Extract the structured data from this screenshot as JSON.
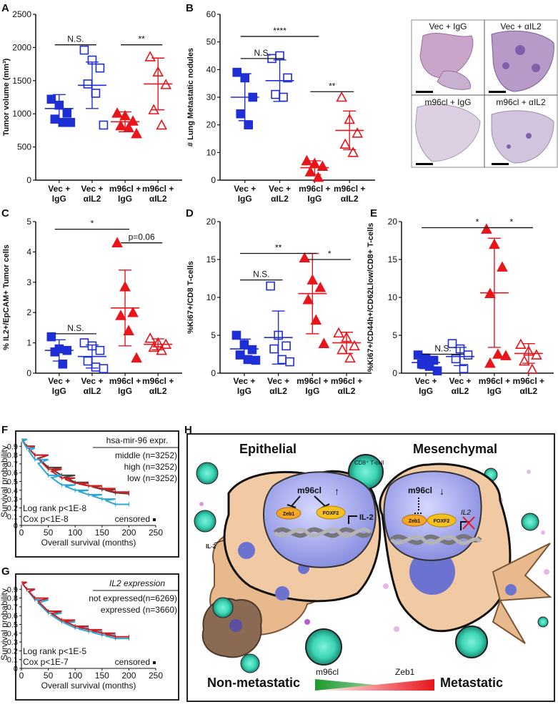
{
  "panel_labels": {
    "A": "A",
    "B": "B",
    "C": "C",
    "D": "D",
    "E": "E",
    "F": "F",
    "G": "G",
    "H": "H"
  },
  "categories": [
    [
      "Vec +",
      "IgG"
    ],
    [
      "Vec +",
      "αIL2"
    ],
    [
      "m96cl +",
      "IgG"
    ],
    [
      "m96cl +",
      "αIL2"
    ]
  ],
  "colors": {
    "blue": "#1f2fd6",
    "red": "#e8151b",
    "curve_gray": "#444444",
    "curve_red": "#cc1f1f",
    "curve_blue": "#2aa7d8",
    "green": "#1d9a2e",
    "tissue": "#c9a5c9"
  },
  "chart_data": [
    {
      "id": "A",
      "type": "scatter",
      "ylabel": "Tumor volume (mm³)",
      "ylim": [
        0,
        2500
      ],
      "yticks": [
        "0",
        "500",
        "1000",
        "1500",
        "2000",
        "2500"
      ],
      "ytick_values": [
        0,
        500,
        1000,
        1500,
        2000,
        2500
      ],
      "groups": [
        {
          "points": [
            1220,
            1130,
            1010,
            920,
            870,
            870
          ],
          "mean": 1080,
          "sd": 210
        },
        {
          "points": [
            1960,
            1810,
            1690,
            1450,
            1310,
            830
          ],
          "mean": 1430,
          "sd": 350
        },
        {
          "points": [
            1010,
            970,
            890,
            820,
            790,
            700
          ],
          "mean": 880,
          "sd": 150
        },
        {
          "points": [
            1860,
            1630,
            1440,
            1060,
            830
          ],
          "mean": 1450,
          "sd": 390
        }
      ],
      "sig": [
        {
          "from": 0,
          "to": 1,
          "label": "N.S.",
          "y": 2040
        },
        {
          "from": 2,
          "to": 3,
          "label": "**",
          "y": 2040
        }
      ]
    },
    {
      "id": "B",
      "type": "scatter",
      "ylabel": "# Lung Metastatic nodules",
      "ylim": [
        0,
        60
      ],
      "yticks": [
        "0",
        "10",
        "20",
        "30",
        "40",
        "50",
        "60"
      ],
      "ytick_values": [
        0,
        10,
        20,
        30,
        40,
        50,
        60
      ],
      "groups": [
        {
          "points": [
            39,
            37,
            30,
            24,
            20
          ],
          "mean": 30,
          "sd": 8.5
        },
        {
          "points": [
            44,
            45,
            37,
            31,
            30
          ],
          "mean": 36,
          "sd": 7.5
        },
        {
          "points": [
            7,
            6,
            5,
            3,
            1
          ],
          "mean": 4.5,
          "sd": 2.5
        },
        {
          "points": [
            30,
            22,
            17,
            13,
            10
          ],
          "mean": 18,
          "sd": 7
        }
      ],
      "sig": [
        {
          "from": 0,
          "to": 1,
          "label": "N.S.",
          "y": 44
        },
        {
          "from": 0,
          "to": 2,
          "label": "****",
          "y": 52
        },
        {
          "from": 2,
          "to": 3,
          "label": "**",
          "y": 32
        }
      ]
    },
    {
      "id": "C",
      "type": "scatter",
      "ylabel": "% IL2+/EpCAM+ Tumor cells",
      "ylim": [
        0,
        5
      ],
      "yticks": [
        "0",
        "1",
        "2",
        "3",
        "4",
        "5"
      ],
      "ytick_values": [
        0,
        1,
        2,
        3,
        4,
        5
      ],
      "groups": [
        {
          "points": [
            1.2,
            0.8,
            0.75,
            0.7,
            0.3
          ],
          "mean": 0.75,
          "sd": 0.35
        },
        {
          "points": [
            1.0,
            0.9,
            0.75,
            0.4,
            0.2,
            0.15
          ],
          "mean": 0.55,
          "sd": 0.38
        },
        {
          "points": [
            4.3,
            2.85,
            2.0,
            1.9,
            1.4,
            0.5
          ],
          "mean": 2.15,
          "sd": 1.25
        },
        {
          "points": [
            1.15,
            1.0,
            0.95,
            0.85,
            0.75
          ],
          "mean": 0.95,
          "sd": 0.18
        }
      ],
      "sig": [
        {
          "from": 0,
          "to": 1,
          "label": "N.S.",
          "y": 1.3
        },
        {
          "from": 0,
          "to": 2,
          "label": "*",
          "y": 4.75
        },
        {
          "from": 2,
          "to": 3,
          "label": "p=0.06",
          "y": 4.3
        }
      ]
    },
    {
      "id": "D",
      "type": "scatter",
      "ylabel": "%Ki67+/CD8 T-cells",
      "ylim": [
        0,
        20
      ],
      "yticks": [
        "0",
        "5",
        "10",
        "15",
        "20"
      ],
      "ytick_values": [
        0,
        5,
        10,
        15,
        20
      ],
      "groups": [
        {
          "points": [
            5.0,
            3.8,
            3.1,
            2.4,
            1.8,
            1.7
          ],
          "mean": 3.2,
          "sd": 1.3
        },
        {
          "points": [
            11.5,
            5.0,
            3.6,
            3.2,
            1.8,
            1.5
          ],
          "mean": 4.7,
          "sd": 3.5
        },
        {
          "points": [
            15.2,
            12.3,
            11.3,
            9.7,
            7.0,
            3.9
          ],
          "mean": 10.5,
          "sd": 5.3
        },
        {
          "points": [
            5.3,
            4.7,
            3.6,
            3.1,
            2.0
          ],
          "mean": 4.0,
          "sd": 1.4
        }
      ],
      "sig": [
        {
          "from": 0,
          "to": 1,
          "label": "N.S.",
          "y": 12.3
        },
        {
          "from": 0,
          "to": 2,
          "label": "**",
          "y": 15.8
        },
        {
          "from": 2,
          "to": 3,
          "label": "*",
          "y": 15.0
        }
      ]
    },
    {
      "id": "E",
      "type": "scatter",
      "ylabel": "%Ki67+/CD44h+/CD62Llow/CD8+ T-cells",
      "ylim": [
        0,
        20
      ],
      "yticks": [
        "0",
        "5",
        "10",
        "15",
        "20"
      ],
      "ytick_values": [
        0,
        5,
        10,
        15,
        20
      ],
      "groups": [
        {
          "points": [
            2.4,
            2.0,
            1.7,
            1.2,
            0.9,
            0.3
          ],
          "mean": 1.4,
          "sd": 0.8
        },
        {
          "points": [
            3.9,
            3.2,
            2.4,
            1.9,
            0.6
          ],
          "mean": 2.2,
          "sd": 1.2
        },
        {
          "points": [
            19.0,
            17.0,
            14.0,
            10.5,
            2.5,
            2.3,
            1.3
          ],
          "mean": 10.6,
          "sd": 7.2
        },
        {
          "points": [
            3.8,
            2.9,
            2.4,
            1.6,
            0.5
          ],
          "mean": 2.6,
          "sd": 1.3
        }
      ],
      "sig": [
        {
          "from": 0,
          "to": 1,
          "label": "N.S.",
          "y": 2.5
        },
        {
          "from": 0,
          "to": 3,
          "label": "*",
          "y": 19.2
        },
        {
          "from": 2,
          "to": 3,
          "label": "*",
          "y": 19.2
        }
      ]
    },
    {
      "id": "F",
      "type": "line",
      "xlabel": "Overall survival (months)",
      "ylabel": "Survival probability",
      "xlim": [
        0,
        250
      ],
      "ylim": [
        0,
        1
      ],
      "xticks": [
        "0",
        "50",
        "100",
        "150",
        "200",
        "250"
      ],
      "xtick_values": [
        0,
        50,
        100,
        150,
        200,
        250
      ],
      "yticks": [
        "0",
        "0.1",
        "0.2",
        "0.3",
        "0.4",
        "0.5",
        "0.6",
        "0.7",
        "0.8",
        "0.9"
      ],
      "ytick_values": [
        0,
        0.1,
        0.2,
        0.3,
        0.4,
        0.5,
        0.6,
        0.7,
        0.8,
        0.9
      ],
      "series": [
        {
          "name": "middle",
          "color": "#444444",
          "x": [
            0,
            10,
            25,
            50,
            75,
            100,
            125,
            150,
            175,
            200
          ],
          "y": [
            0.98,
            0.9,
            0.8,
            0.66,
            0.57,
            0.49,
            0.45,
            0.41,
            0.37,
            0.36
          ]
        },
        {
          "name": "high",
          "color": "#cc1f1f",
          "x": [
            0,
            10,
            25,
            50,
            75,
            100,
            125,
            150,
            175,
            200
          ],
          "y": [
            0.98,
            0.9,
            0.8,
            0.64,
            0.54,
            0.48,
            0.45,
            0.42,
            0.38,
            0.37
          ]
        },
        {
          "name": "low",
          "color": "#2aa7d8",
          "x": [
            0,
            10,
            25,
            50,
            75,
            100,
            125,
            150,
            175,
            200
          ],
          "y": [
            0.98,
            0.88,
            0.75,
            0.57,
            0.46,
            0.4,
            0.35,
            0.3,
            0.24,
            0.24
          ]
        }
      ],
      "legend_title": "hsa-mir-96 expr.",
      "legend": [
        "middle (n=3252)",
        "high (n=3252)",
        "low (n=3252)"
      ],
      "stats": [
        "Log rank p<1E-8",
        "Cox p<1E-8"
      ],
      "censored": "censored"
    },
    {
      "id": "G",
      "type": "line",
      "xlabel": "Overall survival (months)",
      "ylabel": "Survival probability",
      "xlim": [
        0,
        250
      ],
      "ylim": [
        0,
        1
      ],
      "xticks": [
        "0",
        "50",
        "100",
        "150",
        "200",
        "250"
      ],
      "xtick_values": [
        0,
        50,
        100,
        150,
        200,
        250
      ],
      "yticks": [
        "0",
        "0.1",
        "0.2",
        "0.3",
        "0.4",
        "0.5",
        "0.6",
        "0.7",
        "0.8",
        "0.9"
      ],
      "ytick_values": [
        0,
        0.1,
        0.2,
        0.3,
        0.4,
        0.5,
        0.6,
        0.7,
        0.8,
        0.9
      ],
      "series": [
        {
          "name": "not expressed",
          "color": "#2aa7d8",
          "x": [
            0,
            10,
            25,
            50,
            75,
            100,
            125,
            150,
            175,
            200
          ],
          "y": [
            0.98,
            0.9,
            0.78,
            0.63,
            0.53,
            0.46,
            0.42,
            0.38,
            0.34,
            0.34
          ]
        },
        {
          "name": "expressed",
          "color": "#cc1f1f",
          "x": [
            0,
            10,
            25,
            50,
            75,
            100,
            125,
            150,
            175,
            200
          ],
          "y": [
            0.98,
            0.9,
            0.8,
            0.65,
            0.55,
            0.48,
            0.44,
            0.4,
            0.36,
            0.36
          ]
        }
      ],
      "legend_title": "IL2 expression",
      "legend": [
        "not expressed(n=6269)",
        "expressed (n=3660)"
      ],
      "stats": [
        "Log rank p<1E-5",
        "Cox p<1E-7"
      ],
      "censored": "censored"
    }
  ],
  "histology": [
    "Vec + IgG",
    "Vec + αIL2",
    "m96cl + IgG",
    "m96cl + αIL2"
  ],
  "schematic": {
    "epithelial": "Epithelial",
    "mesenchymal": "Mesenchymal",
    "cd8": "CD8⁺ T-cell",
    "m96cl": "m96cl",
    "zeb1": "Zeb1",
    "foxf2": "FOXF2",
    "il2": "IL-2",
    "il2_gene": "IL2",
    "il2_secreted": "IL-2",
    "up": "↑",
    "down": "↓",
    "non_metastatic": "Non-metastatic",
    "metastatic": "Metastatic",
    "grad_m96cl": "m96cl",
    "grad_zeb1": "Zeb1"
  }
}
